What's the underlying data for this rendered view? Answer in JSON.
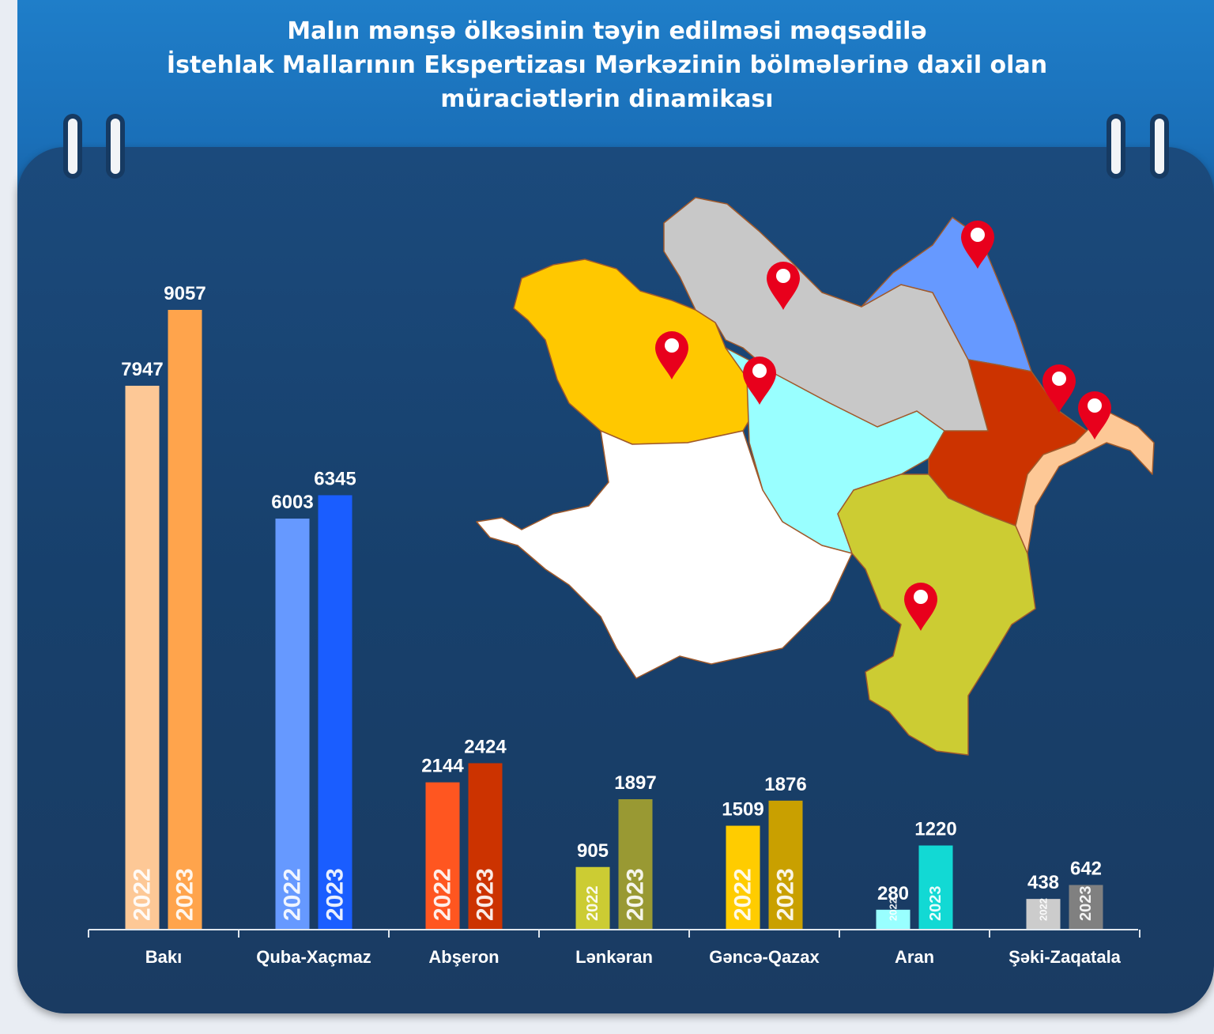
{
  "title": {
    "line1": "Malın mənşə ölkəsinin təyin edilməsi məqsədilə",
    "line2": "İstehlak Mallarının Ekspertizası Mərkəzinin bölmələrinə daxil olan",
    "line3": "müraciətlərin dinamikası"
  },
  "chart_data": {
    "type": "bar",
    "categories": [
      "Bakı",
      "Quba-Xaçmaz",
      "Abşeron",
      "Lənkəran",
      "Gəncə-Qazax",
      "Aran",
      "Şəki-Zaqatala"
    ],
    "series": [
      {
        "name": "2022",
        "values": [
          7947,
          6003,
          2144,
          905,
          1509,
          280,
          438
        ]
      },
      {
        "name": "2023",
        "values": [
          9057,
          6345,
          2424,
          1897,
          1876,
          1220,
          642
        ]
      }
    ],
    "bar_colors": [
      [
        "#fdc896",
        "#ffa44c"
      ],
      [
        "#6699ff",
        "#1a5dff"
      ],
      [
        "#ff5620",
        "#cc3300"
      ],
      [
        "#cccc33",
        "#999933"
      ],
      [
        "#ffcc00",
        "#c9a000"
      ],
      [
        "#99ffff",
        "#12d9d4"
      ],
      [
        "#cccccc",
        "#808080"
      ]
    ],
    "ylim": [
      0,
      9057
    ],
    "grid": false,
    "legend": "none"
  },
  "map": {
    "region_colors": [
      "#ffc800",
      "#c8c8c8",
      "#6699ff",
      "#99ffff",
      "#ffffff",
      "#cccc33",
      "#cc3300",
      "#fdc896"
    ],
    "marker_icon": "location-pin-icon",
    "marker_color": "#e8001c"
  }
}
